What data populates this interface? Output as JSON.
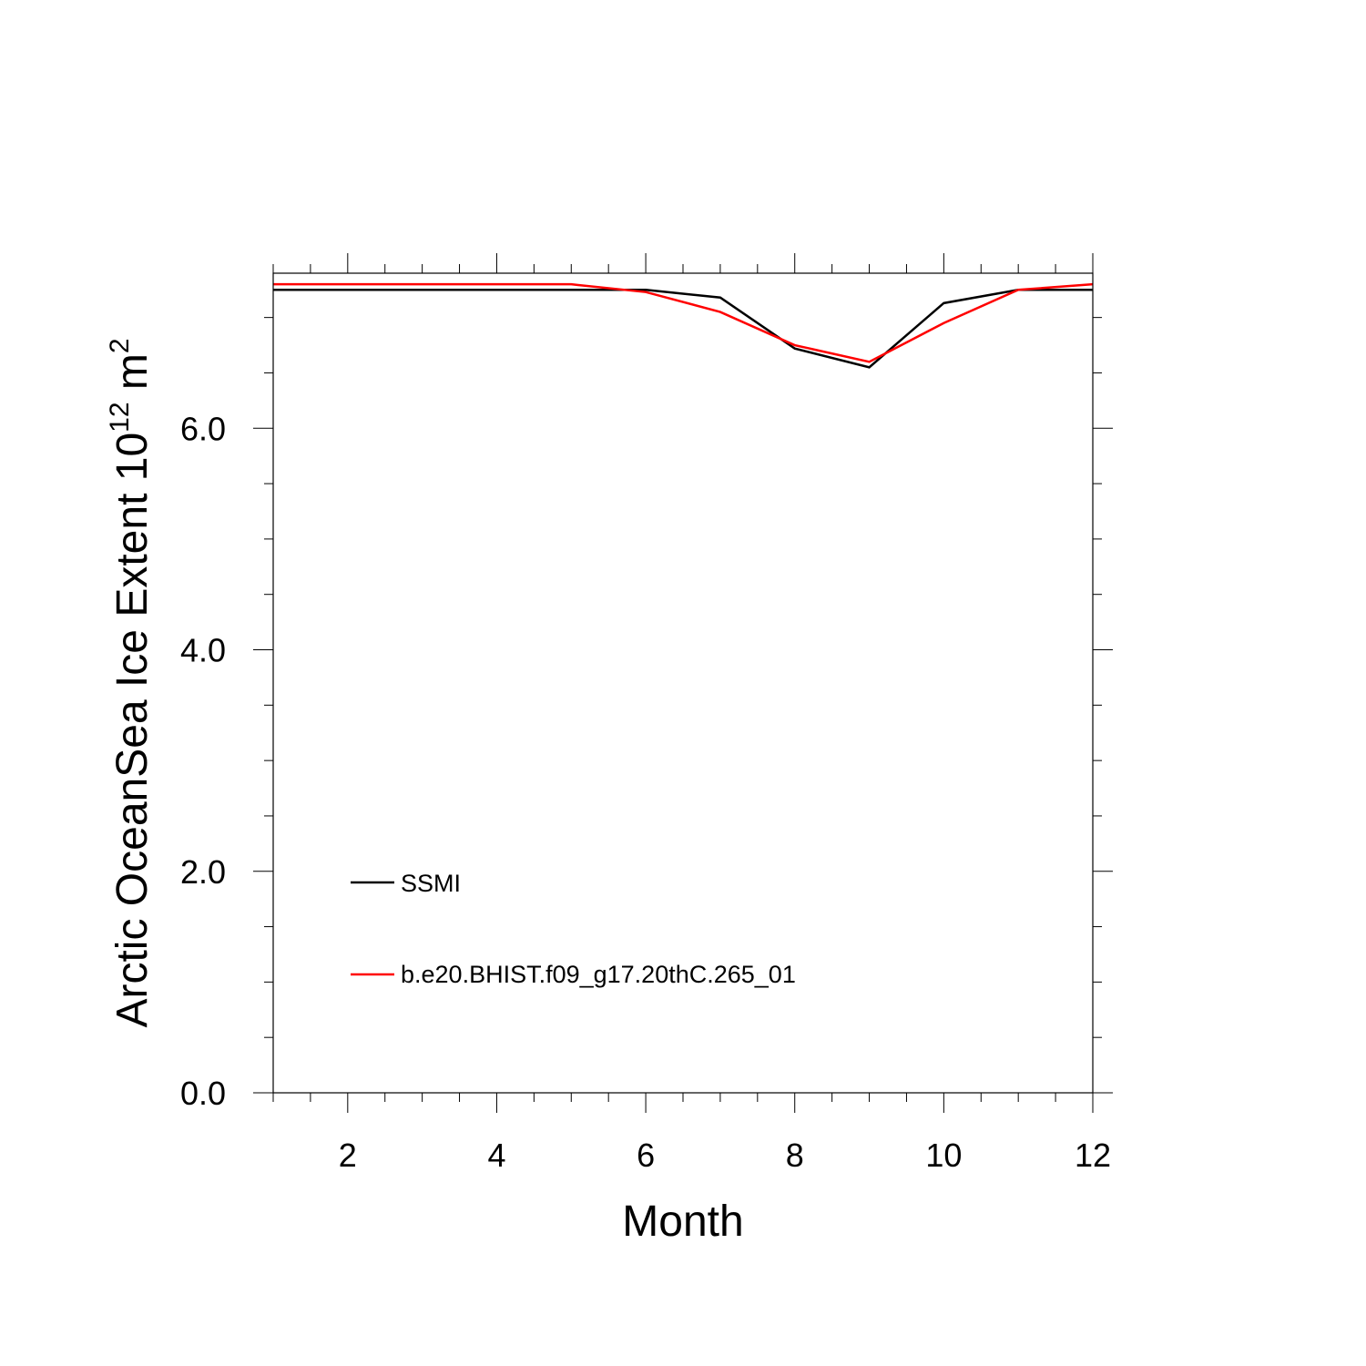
{
  "chart_data": {
    "type": "line",
    "xlabel": "Month",
    "ylabel_main": "Arctic OceanSea Ice Extent 10",
    "ylabel_exp": "12",
    "ylabel_unit": " m",
    "ylabel_unit_exp": "2",
    "xlim": [
      1,
      12
    ],
    "ylim": [
      0,
      7.4
    ],
    "x_ticks": [
      2,
      4,
      6,
      8,
      10,
      12
    ],
    "x_tick_labels": [
      "2",
      "4",
      "6",
      "8",
      "10",
      "12"
    ],
    "y_ticks": [
      0,
      2,
      4,
      6
    ],
    "y_tick_labels": [
      "0.0",
      "2.0",
      "4.0",
      "6.0"
    ],
    "grid": false,
    "legend_position": "lower-left",
    "series": [
      {
        "name": "SSMI",
        "color": "#000000",
        "x": [
          1,
          2,
          3,
          4,
          5,
          6,
          7,
          8,
          9,
          10,
          11,
          12
        ],
        "values": [
          7.25,
          7.25,
          7.25,
          7.25,
          7.25,
          7.25,
          7.18,
          6.72,
          6.55,
          7.13,
          7.25,
          7.25
        ]
      },
      {
        "name": "b.e20.BHIST.f09_g17.20thC.265_01",
        "color": "#ff0000",
        "x": [
          1,
          2,
          3,
          4,
          5,
          6,
          7,
          8,
          9,
          10,
          11,
          12
        ],
        "values": [
          7.3,
          7.3,
          7.3,
          7.3,
          7.3,
          7.23,
          7.05,
          6.75,
          6.6,
          6.95,
          7.25,
          7.3
        ]
      }
    ]
  }
}
